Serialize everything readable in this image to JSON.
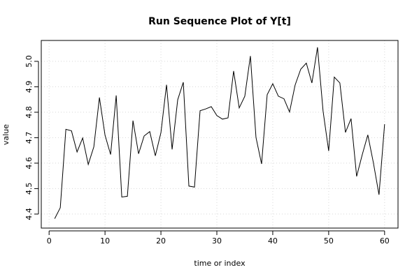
{
  "chart_data": {
    "type": "line",
    "title": "Run Sequence Plot of Y[t]",
    "xlabel": "time or index",
    "ylabel": "value",
    "xlim": [
      -1.4,
      62.4
    ],
    "ylim": [
      4.345,
      5.082
    ],
    "xticks": [
      "0",
      "10",
      "20",
      "30",
      "40",
      "50",
      "60"
    ],
    "yticks": [
      "4.4",
      "4.5",
      "4.6",
      "4.7",
      "4.8",
      "4.9",
      "5.0"
    ],
    "grid": true,
    "x": [
      1,
      2,
      3,
      4,
      5,
      6,
      7,
      8,
      9,
      10,
      11,
      12,
      13,
      14,
      15,
      16,
      17,
      18,
      19,
      20,
      21,
      22,
      23,
      24,
      25,
      26,
      27,
      28,
      29,
      30,
      31,
      32,
      33,
      34,
      35,
      36,
      37,
      38,
      39,
      40,
      41,
      42,
      43,
      44,
      45,
      46,
      47,
      48,
      49,
      50,
      51,
      52,
      53,
      54,
      55,
      56,
      57,
      58,
      59,
      60
    ],
    "series": [
      {
        "values": [
          4.382,
          4.425,
          4.733,
          4.727,
          4.644,
          4.699,
          4.595,
          4.664,
          4.858,
          4.71,
          4.634,
          4.866,
          4.467,
          4.47,
          4.767,
          4.637,
          4.707,
          4.724,
          4.629,
          4.72,
          4.908,
          4.654,
          4.849,
          4.918,
          4.51,
          4.506,
          4.806,
          4.813,
          4.822,
          4.787,
          4.773,
          4.778,
          4.962,
          4.817,
          4.863,
          5.021,
          4.701,
          4.597,
          4.869,
          4.912,
          4.863,
          4.853,
          4.801,
          4.907,
          4.969,
          4.993,
          4.915,
          5.055,
          4.804,
          4.648,
          4.938,
          4.915,
          4.721,
          4.775,
          4.548,
          4.633,
          4.711,
          4.601,
          4.476,
          4.753
        ]
      }
    ]
  }
}
